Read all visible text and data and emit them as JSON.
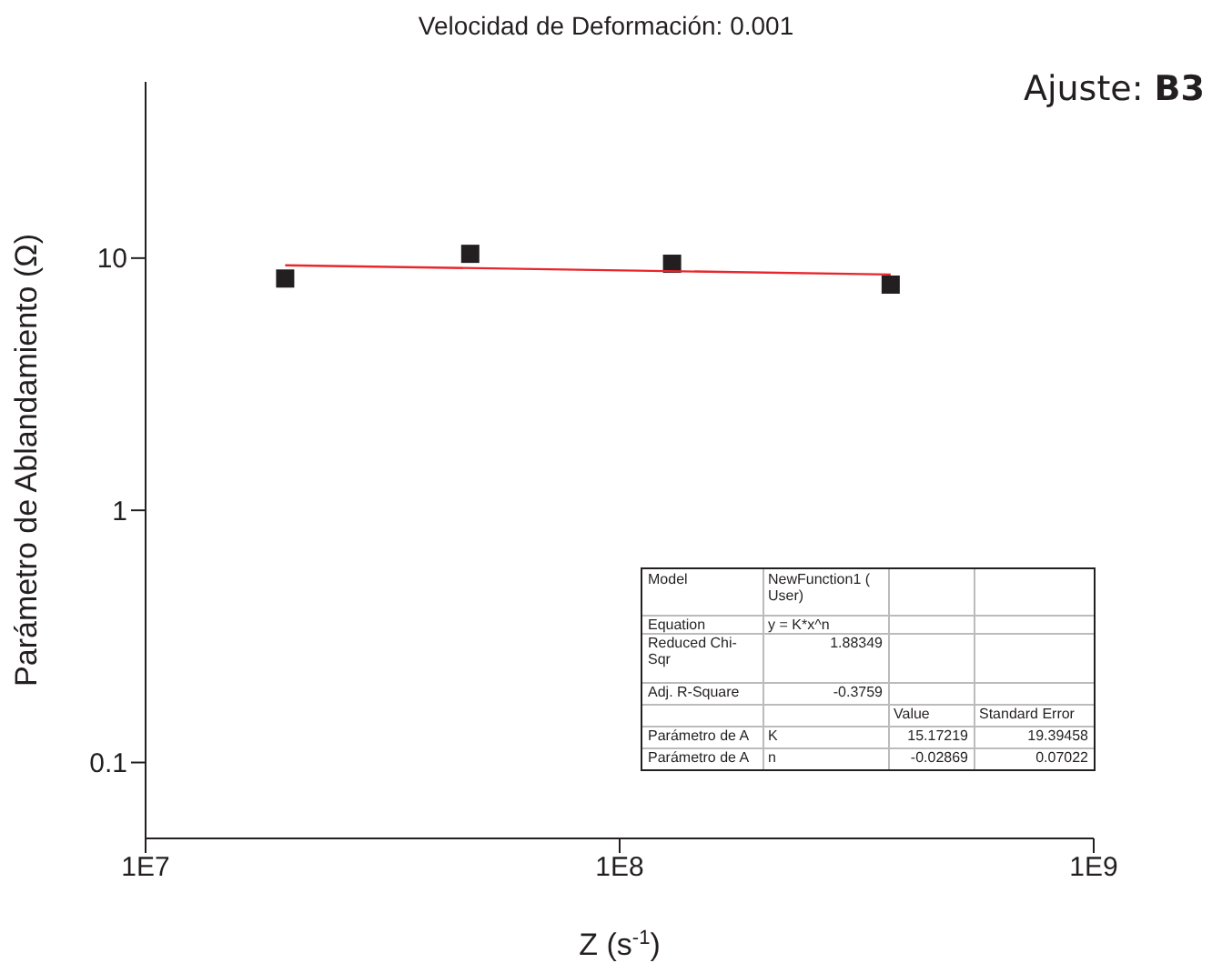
{
  "chart_data": {
    "type": "scatter",
    "title": "Velocidad de Deformación: 0.001",
    "xlabel": "Z (s$^{-1}$)",
    "ylabel": "Parámetro de Ablandamiento (Ω)",
    "log": "xy",
    "xlim": [
      10000000,
      1000000000
    ],
    "xticks": [
      {
        "value": 10000000,
        "label": "1E7"
      },
      {
        "value": 100000000,
        "label": "1E8"
      },
      {
        "value": 1000000000,
        "label": "1E9"
      }
    ],
    "ylim": [
      0.05,
      50
    ],
    "yticks": [
      0.1,
      1,
      10
    ],
    "grid": false,
    "legend": false,
    "marker": "square",
    "series": [
      {
        "type": "scatter",
        "color": "#231f20",
        "x": [
          19700000,
          48400000,
          129000000,
          373000000
        ],
        "values": [
          8.3,
          10.4,
          9.5,
          7.85
        ]
      },
      {
        "type": "line",
        "color": "#e8262b",
        "marker": "none",
        "x": [
          19700000,
          373000000
        ],
        "values": [
          9.37,
          8.61
        ]
      }
    ],
    "annotations": [
      "Ajuste:",
      "B3",
      "Model",
      "NewFunction1 ( User)",
      "Equation",
      "y = K*x^n",
      "Reduced Chi-Sqr",
      "1.88349",
      "Adj. R-Square",
      "-0.3759",
      "Value",
      "Standard Error",
      "Parámetro de A",
      "K",
      "15.17219",
      "19.39458",
      "Parámetro de A",
      "n",
      "-0.02869",
      "0.07022"
    ]
  }
}
